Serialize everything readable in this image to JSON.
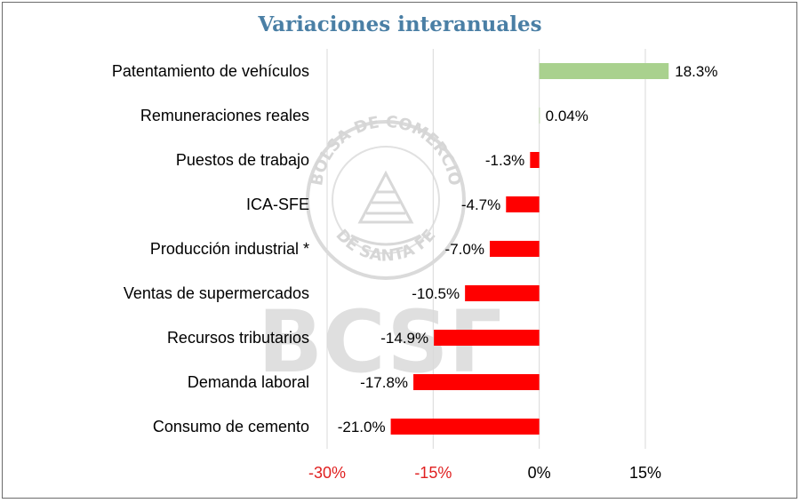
{
  "chart_data": {
    "type": "bar",
    "orientation": "horizontal",
    "title": "Variaciones interanuales",
    "categories": [
      "Patentamiento de vehículos",
      "Remuneraciones reales",
      "Puestos de trabajo",
      "ICA-SFE",
      "Producción industrial *",
      "Ventas de supermercados",
      "Recursos tributarios",
      "Demanda laboral",
      "Consumo de cemento"
    ],
    "values": [
      18.3,
      0.04,
      -1.3,
      -4.7,
      -7.0,
      -10.5,
      -14.9,
      -17.8,
      -21.0
    ],
    "value_labels": [
      "18.3%",
      "0.04%",
      "-1.3%",
      "-4.7%",
      "-7.0%",
      "-10.5%",
      "-14.9%",
      "-17.8%",
      "-21.0%"
    ],
    "xlim": [
      -30,
      15
    ],
    "xticks": [
      -30,
      -15,
      0,
      15
    ],
    "xtick_labels": [
      "-30%",
      "-15%",
      "0%",
      "15%"
    ],
    "grid": "vertical",
    "legend": "none"
  },
  "watermark": {
    "seal_lines": [
      "BOLSA DE COMERCIO",
      "DE SANTA FE"
    ],
    "text": "BCSF"
  },
  "colors": {
    "positive": "#a9d18e",
    "negative": "#ff0000",
    "negative_tick": "#e02020",
    "title": "#4a7fa5",
    "grid": "#d9d9d9"
  }
}
